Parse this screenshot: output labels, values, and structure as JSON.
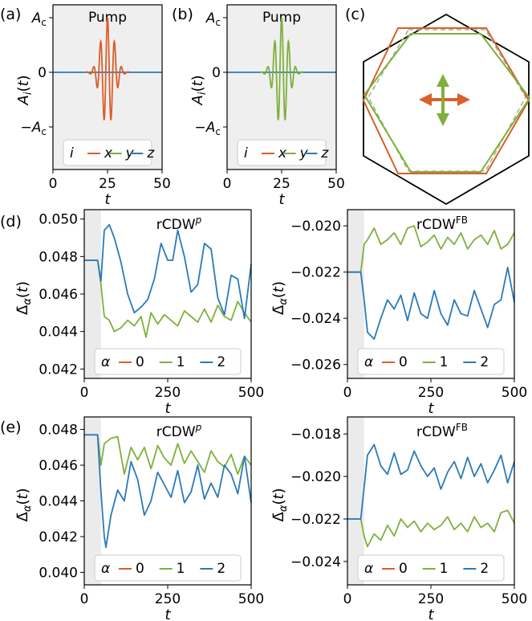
{
  "colors": {
    "x": "#d95f2b",
    "y": "#7fb03c",
    "z": "#2a7ab9",
    "shade": "#ecebec",
    "pump_bg": "#efefef"
  },
  "panel_labels": [
    "(a)",
    "(b)",
    "(c)",
    "(d)",
    "(e)"
  ],
  "chart_data": [
    {
      "id": "a",
      "type": "line",
      "title": "Pump",
      "xlabel": "t",
      "ylabel": "A_i(t)",
      "xlim": [
        0,
        50
      ],
      "xticks": [
        0,
        25,
        50
      ],
      "yticks": [
        "A_c",
        "0",
        "−A_c"
      ],
      "legend": {
        "prefix": "i",
        "entries": [
          "x",
          "y",
          "z"
        ],
        "placement": "bottom"
      },
      "series": [
        {
          "name": "x",
          "values": "pulse along x: Gaussian-enveloped oscillation centered at t=25, peak amplitude A_c"
        },
        {
          "name": "z",
          "values": "zero"
        }
      ]
    },
    {
      "id": "b",
      "type": "line",
      "title": "Pump",
      "xlabel": "t",
      "ylabel": "A_i(t)",
      "xlim": [
        0,
        50
      ],
      "xticks": [
        0,
        25,
        50
      ],
      "yticks": [
        "A_c",
        "0",
        "−A_c"
      ],
      "legend": {
        "prefix": "i",
        "entries": [
          "x",
          "y",
          "z"
        ],
        "placement": "bottom"
      },
      "series": [
        {
          "name": "y",
          "values": "pulse along y: Gaussian-enveloped oscillation centered at t=25, peak amplitude A_c"
        },
        {
          "name": "z",
          "values": "zero"
        }
      ]
    },
    {
      "id": "d-left",
      "type": "line",
      "title": "rCDW",
      "title_sup": "p",
      "xlabel": "t",
      "ylabel": "Δ̄_α(t)",
      "xlim": [
        0,
        500
      ],
      "ylim": [
        0.0415,
        0.0505
      ],
      "xticks": [
        0,
        250,
        500
      ],
      "yticks": [
        0.042,
        0.044,
        0.046,
        0.048,
        0.05
      ],
      "ytick_labels": [
        "0.042",
        "0.044",
        "0.046",
        "0.048",
        "0.050"
      ],
      "shaded_region": [
        0,
        50
      ],
      "legend": {
        "prefix": "α",
        "entries": [
          "0",
          "1",
          "2"
        ],
        "placement": "bottom"
      },
      "series": [
        {
          "name": "1",
          "x": [
            0,
            40,
            50,
            60,
            75,
            90,
            110,
            130,
            150,
            170,
            185,
            200,
            220,
            240,
            260,
            280,
            300,
            320,
            340,
            360,
            380,
            400,
            420,
            440,
            460,
            480,
            500
          ],
          "y": [
            0.0478,
            0.0478,
            0.0465,
            0.0448,
            0.0446,
            0.044,
            0.0442,
            0.0446,
            0.0443,
            0.0448,
            0.0437,
            0.045,
            0.0444,
            0.0449,
            0.0446,
            0.0443,
            0.0451,
            0.0448,
            0.0445,
            0.0452,
            0.0445,
            0.0454,
            0.0448,
            0.0446,
            0.0456,
            0.045,
            0.0445
          ]
        },
        {
          "name": "2",
          "x": [
            0,
            40,
            50,
            60,
            75,
            90,
            110,
            130,
            150,
            170,
            190,
            210,
            230,
            250,
            265,
            280,
            300,
            320,
            340,
            360,
            380,
            400,
            420,
            440,
            460,
            480,
            500
          ],
          "y": [
            0.0478,
            0.0478,
            0.0467,
            0.0494,
            0.0497,
            0.049,
            0.0477,
            0.046,
            0.045,
            0.0453,
            0.0457,
            0.0468,
            0.0487,
            0.0478,
            0.0478,
            0.0494,
            0.048,
            0.0461,
            0.0465,
            0.0487,
            0.0484,
            0.0458,
            0.0449,
            0.047,
            0.0468,
            0.0447,
            0.0476
          ]
        }
      ]
    },
    {
      "id": "d-right",
      "type": "line",
      "title": "rCDW",
      "title_sup": "FB",
      "xlabel": "t",
      "ylabel": "Δ̄_α(t)",
      "xlim": [
        0,
        500
      ],
      "ylim": [
        -0.0266,
        -0.0193
      ],
      "xticks": [
        0,
        250,
        500
      ],
      "yticks": [
        -0.026,
        -0.024,
        -0.022,
        -0.02
      ],
      "ytick_labels": [
        "−0.026",
        "−0.024",
        "−0.022",
        "−0.020"
      ],
      "shaded_region": [
        0,
        50
      ],
      "legend": {
        "prefix": "α",
        "entries": [
          "0",
          "1",
          "2"
        ],
        "placement": "bottom"
      },
      "series": [
        {
          "name": "1",
          "x": [
            0,
            40,
            50,
            60,
            80,
            100,
            120,
            140,
            160,
            180,
            200,
            220,
            240,
            260,
            280,
            300,
            320,
            340,
            360,
            380,
            400,
            420,
            440,
            460,
            480,
            500
          ],
          "y": [
            -0.022,
            -0.022,
            -0.0208,
            -0.0206,
            -0.0201,
            -0.0208,
            -0.0206,
            -0.0203,
            -0.0208,
            -0.0201,
            -0.02,
            -0.0209,
            -0.0207,
            -0.0204,
            -0.021,
            -0.0205,
            -0.0208,
            -0.0203,
            -0.021,
            -0.0206,
            -0.0204,
            -0.0208,
            -0.0202,
            -0.021,
            -0.0208,
            -0.0203
          ]
        },
        {
          "name": "2",
          "x": [
            0,
            40,
            50,
            60,
            80,
            100,
            120,
            140,
            160,
            180,
            200,
            220,
            240,
            260,
            280,
            300,
            320,
            340,
            360,
            380,
            400,
            420,
            440,
            460,
            480,
            500
          ],
          "y": [
            -0.022,
            -0.022,
            -0.0232,
            -0.0246,
            -0.0249,
            -0.024,
            -0.0232,
            -0.0236,
            -0.023,
            -0.0241,
            -0.0229,
            -0.0238,
            -0.024,
            -0.0228,
            -0.0238,
            -0.0243,
            -0.0232,
            -0.0238,
            -0.0239,
            -0.0228,
            -0.0236,
            -0.0244,
            -0.0234,
            -0.0232,
            -0.0218,
            -0.0233
          ]
        }
      ]
    },
    {
      "id": "e-left",
      "type": "line",
      "title": "rCDW",
      "title_sup": "p",
      "xlabel": "t",
      "ylabel": "Δ̄_α(t)",
      "xlim": [
        0,
        500
      ],
      "ylim": [
        0.0393,
        0.0487
      ],
      "xticks": [
        0,
        250,
        500
      ],
      "yticks": [
        0.04,
        0.042,
        0.044,
        0.046,
        0.048
      ],
      "ytick_labels": [
        "0.040",
        "0.042",
        "0.044",
        "0.046",
        "0.048"
      ],
      "shaded_region": [
        0,
        50
      ],
      "legend": {
        "prefix": "α",
        "entries": [
          "0",
          "1",
          "2"
        ],
        "placement": "bottom"
      },
      "series": [
        {
          "name": "1",
          "x": [
            0,
            40,
            50,
            60,
            80,
            100,
            120,
            140,
            160,
            180,
            200,
            220,
            240,
            260,
            280,
            300,
            320,
            340,
            360,
            380,
            400,
            420,
            440,
            460,
            480,
            500
          ],
          "y": [
            0.0477,
            0.0477,
            0.046,
            0.0472,
            0.0475,
            0.0476,
            0.0455,
            0.047,
            0.0463,
            0.047,
            0.0458,
            0.0471,
            0.0464,
            0.046,
            0.0472,
            0.0461,
            0.0468,
            0.0462,
            0.0456,
            0.0468,
            0.0462,
            0.0459,
            0.0466,
            0.0455,
            0.0465,
            0.046
          ]
        },
        {
          "name": "2",
          "x": [
            0,
            40,
            50,
            60,
            65,
            80,
            100,
            120,
            140,
            160,
            180,
            200,
            220,
            240,
            260,
            280,
            300,
            320,
            340,
            360,
            380,
            400,
            420,
            440,
            460,
            480,
            500
          ],
          "y": [
            0.0477,
            0.0477,
            0.0445,
            0.042,
            0.0414,
            0.0432,
            0.0446,
            0.044,
            0.0462,
            0.0452,
            0.0432,
            0.044,
            0.0456,
            0.0449,
            0.0442,
            0.0457,
            0.0439,
            0.0445,
            0.046,
            0.0441,
            0.045,
            0.0442,
            0.046,
            0.0455,
            0.0444,
            0.0465,
            0.0439
          ]
        }
      ]
    },
    {
      "id": "e-right",
      "type": "line",
      "title": "rCDW",
      "title_sup": "FB",
      "xlabel": "t",
      "ylabel": "Δ̄_α(t)",
      "xlim": [
        0,
        500
      ],
      "ylim": [
        -0.0251,
        -0.0172
      ],
      "xticks": [
        0,
        250,
        500
      ],
      "yticks": [
        -0.024,
        -0.022,
        -0.02,
        -0.018
      ],
      "ytick_labels": [
        "−0.024",
        "−0.022",
        "−0.020",
        "−0.018"
      ],
      "shaded_region": [
        0,
        50
      ],
      "legend": {
        "prefix": "α",
        "entries": [
          "0",
          "1",
          "2"
        ],
        "placement": "bottom"
      },
      "series": [
        {
          "name": "1",
          "x": [
            0,
            40,
            50,
            60,
            80,
            100,
            120,
            140,
            160,
            180,
            200,
            220,
            240,
            260,
            280,
            300,
            320,
            340,
            360,
            380,
            400,
            420,
            440,
            460,
            480,
            500
          ],
          "y": [
            -0.022,
            -0.022,
            -0.0228,
            -0.0233,
            -0.0227,
            -0.023,
            -0.0223,
            -0.0228,
            -0.022,
            -0.0224,
            -0.0221,
            -0.0226,
            -0.0222,
            -0.0225,
            -0.0223,
            -0.0219,
            -0.0225,
            -0.0222,
            -0.0226,
            -0.0219,
            -0.0224,
            -0.0222,
            -0.0226,
            -0.0217,
            -0.0216,
            -0.0222
          ]
        },
        {
          "name": "2",
          "x": [
            0,
            40,
            50,
            60,
            80,
            100,
            120,
            140,
            160,
            180,
            200,
            220,
            240,
            260,
            280,
            300,
            320,
            340,
            360,
            380,
            400,
            420,
            440,
            460,
            480,
            500
          ],
          "y": [
            -0.022,
            -0.022,
            -0.0205,
            -0.019,
            -0.0185,
            -0.0195,
            -0.0199,
            -0.0189,
            -0.0199,
            -0.0197,
            -0.0188,
            -0.0195,
            -0.02,
            -0.0196,
            -0.0206,
            -0.0198,
            -0.0193,
            -0.0201,
            -0.0191,
            -0.02,
            -0.0194,
            -0.0203,
            -0.0197,
            -0.019,
            -0.0203,
            -0.0193
          ]
        }
      ]
    }
  ]
}
